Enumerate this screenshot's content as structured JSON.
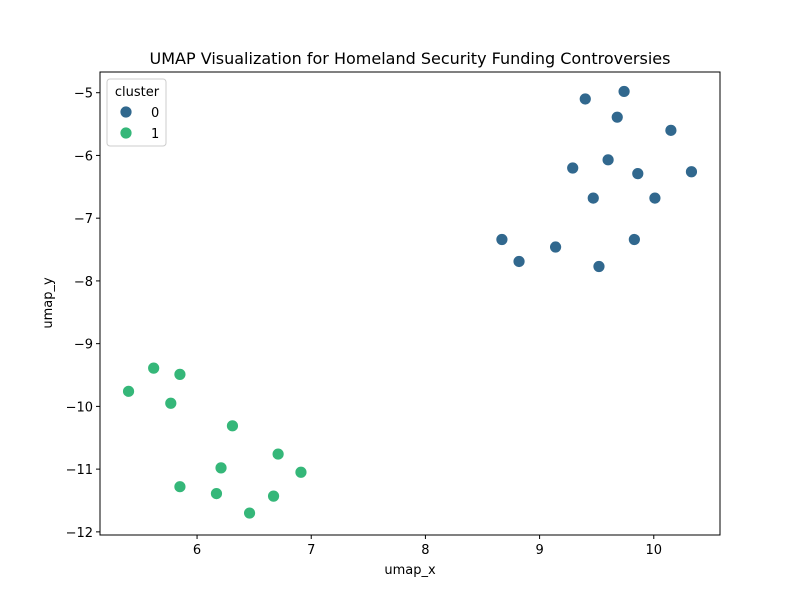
{
  "chart_data": {
    "type": "scatter",
    "title": "UMAP Visualization for Homeland Security Funding Controversies",
    "xlabel": "umap_x",
    "ylabel": "umap_y",
    "xlim": [
      5.15,
      10.58
    ],
    "ylim": [
      -12.05,
      -4.67
    ],
    "xticks": [
      6,
      7,
      8,
      9,
      10
    ],
    "yticks": [
      -5,
      -6,
      -7,
      -8,
      -9,
      -10,
      -11,
      -12
    ],
    "grid": false,
    "legend": {
      "title": "cluster",
      "placement": "top-left"
    },
    "series": [
      {
        "name": "0",
        "color": "#31688e",
        "points": [
          [
            9.4,
            -5.1
          ],
          [
            9.74,
            -4.98
          ],
          [
            9.68,
            -5.39
          ],
          [
            10.15,
            -5.6
          ],
          [
            9.29,
            -6.2
          ],
          [
            9.6,
            -6.07
          ],
          [
            9.86,
            -6.29
          ],
          [
            10.33,
            -6.26
          ],
          [
            9.47,
            -6.68
          ],
          [
            10.01,
            -6.68
          ],
          [
            8.67,
            -7.34
          ],
          [
            9.14,
            -7.46
          ],
          [
            9.83,
            -7.34
          ],
          [
            8.82,
            -7.69
          ],
          [
            9.52,
            -7.77
          ]
        ]
      },
      {
        "name": "1",
        "color": "#35b779",
        "points": [
          [
            5.62,
            -9.39
          ],
          [
            5.85,
            -9.49
          ],
          [
            5.4,
            -9.76
          ],
          [
            5.77,
            -9.95
          ],
          [
            6.31,
            -10.31
          ],
          [
            6.71,
            -10.76
          ],
          [
            6.21,
            -10.98
          ],
          [
            6.91,
            -11.05
          ],
          [
            5.85,
            -11.28
          ],
          [
            6.17,
            -11.39
          ],
          [
            6.67,
            -11.43
          ],
          [
            6.46,
            -11.7
          ]
        ]
      }
    ]
  }
}
